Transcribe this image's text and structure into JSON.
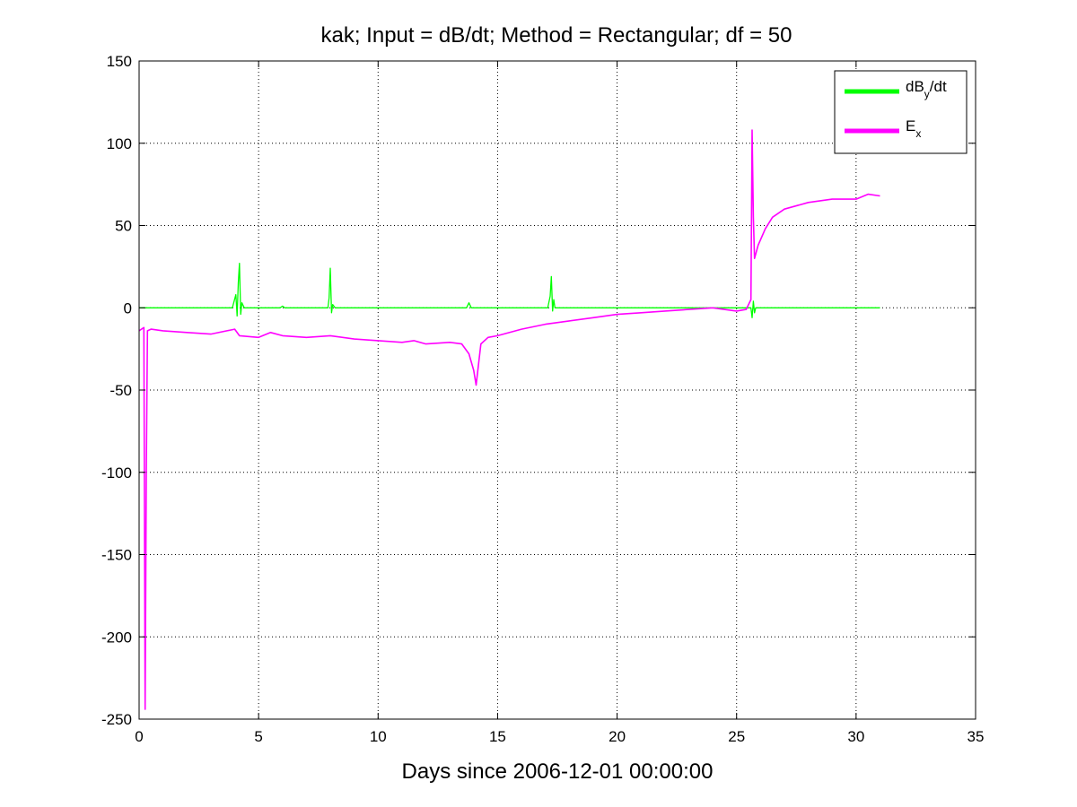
{
  "chart_data": {
    "type": "line",
    "title": "kak; Input = dB/dt; Method = Rectangular; df = 50",
    "xlabel": "Days since 2006-12-01 00:00:00",
    "ylabel": "",
    "xlim": [
      0,
      35
    ],
    "ylim": [
      -250,
      150
    ],
    "xticks": [
      0,
      5,
      10,
      15,
      20,
      25,
      30,
      35
    ],
    "yticks": [
      -250,
      -200,
      -150,
      -100,
      -50,
      0,
      50,
      100,
      150
    ],
    "grid": true,
    "legend": {
      "position": "top-right",
      "entries": [
        {
          "main": "dB",
          "sub": "y",
          "tail": "/dt",
          "color": "#00ff00"
        },
        {
          "main": "E",
          "sub": "x",
          "tail": "",
          "color": "#ff00ff"
        }
      ]
    },
    "series": [
      {
        "color": "#00ff00",
        "x": [
          0.0,
          3.9,
          4.05,
          4.1,
          4.15,
          4.2,
          4.25,
          4.3,
          4.4,
          5.9,
          6.0,
          6.1,
          7.9,
          7.95,
          8.0,
          8.05,
          8.1,
          8.2,
          13.7,
          13.8,
          13.9,
          17.1,
          17.2,
          17.25,
          17.3,
          17.35,
          17.4,
          25.6,
          25.65,
          25.7,
          25.75,
          25.8,
          31.0
        ],
        "y": [
          0,
          0,
          8,
          -5,
          15,
          27,
          -4,
          3,
          0,
          0,
          1,
          0,
          0,
          6,
          24,
          -3,
          2,
          0,
          0,
          3,
          0,
          0,
          7,
          19,
          -2,
          5,
          0,
          0,
          -6,
          4,
          -3,
          0,
          0
        ]
      },
      {
        "color": "#ff00ff",
        "x": [
          0.0,
          0.2,
          0.25,
          0.3,
          0.35,
          0.5,
          1.0,
          2.0,
          3.0,
          4.0,
          4.2,
          5.0,
          5.5,
          6.0,
          7.0,
          8.0,
          9.0,
          10.0,
          11.0,
          11.5,
          12.0,
          13.0,
          13.5,
          13.8,
          14.0,
          14.1,
          14.3,
          14.6,
          15.0,
          16.0,
          17.0,
          18.0,
          19.0,
          20.0,
          21.0,
          22.0,
          23.0,
          24.0,
          25.0,
          25.4,
          25.6,
          25.65,
          25.7,
          25.75,
          25.9,
          26.2,
          26.5,
          27.0,
          28.0,
          29.0,
          30.0,
          30.5,
          31.0
        ],
        "y": [
          -14,
          -12,
          -244,
          -100,
          -14,
          -13,
          -14,
          -15,
          -16,
          -13,
          -17,
          -18,
          -15,
          -17,
          -18,
          -17,
          -19,
          -20,
          -21,
          -20,
          -22,
          -21,
          -22,
          -28,
          -38,
          -47,
          -22,
          -18,
          -17,
          -13,
          -10,
          -8,
          -6,
          -4,
          -3,
          -2,
          -1,
          0,
          -2,
          -1,
          5,
          108,
          55,
          30,
          38,
          48,
          55,
          60,
          64,
          66,
          66,
          69,
          68
        ]
      }
    ]
  }
}
